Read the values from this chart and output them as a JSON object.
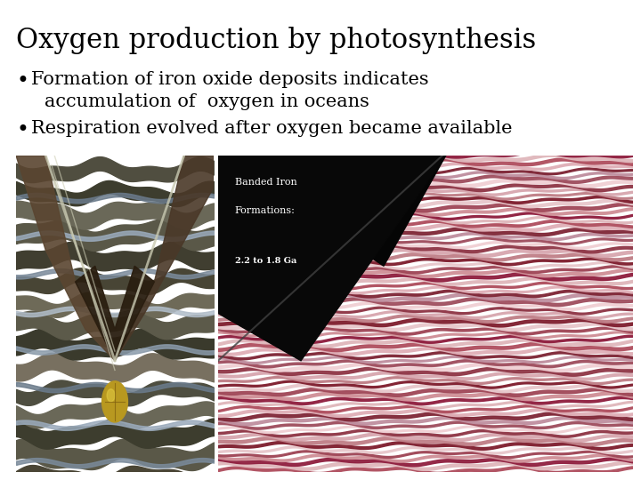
{
  "title": "Oxygen production by photosynthesis",
  "bullet1_line1": "Formation of iron oxide deposits indicates",
  "bullet1_line2": "accumulation of  oxygen in oceans",
  "bullet2": "Respiration evolved after oxygen became available",
  "background_color": "#ffffff",
  "title_color": "#000000",
  "text_color": "#000000",
  "title_fontsize": 22,
  "bullet_fontsize": 15,
  "banded_text_line1": "Banded Iron",
  "banded_text_line2": "Formations:",
  "banded_text_line3": "2.2 to 1.8 Ga"
}
